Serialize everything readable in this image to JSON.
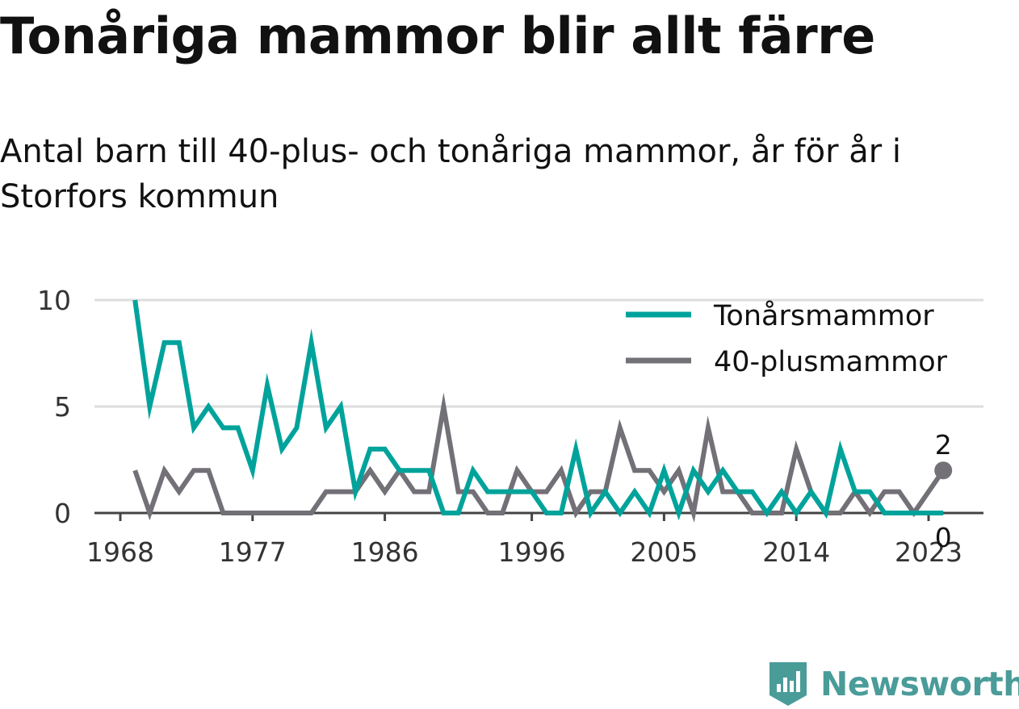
{
  "title": "Tonåriga mammor blir allt färre",
  "subtitle": "Antal barn till 40-plus- och tonåriga mammor, år för år i Storfors kommun",
  "brand": {
    "name": "Newsworthy",
    "color": "#4a9c99",
    "icon": "newsworthy-logo-icon"
  },
  "chart_data": {
    "type": "line",
    "x": [
      1969,
      1970,
      1971,
      1972,
      1973,
      1974,
      1975,
      1976,
      1977,
      1978,
      1979,
      1980,
      1981,
      1982,
      1983,
      1984,
      1985,
      1986,
      1987,
      1988,
      1989,
      1990,
      1991,
      1992,
      1993,
      1994,
      1995,
      1996,
      1997,
      1998,
      1999,
      2000,
      2001,
      2002,
      2003,
      2004,
      2005,
      2006,
      2007,
      2008,
      2009,
      2010,
      2011,
      2012,
      2013,
      2014,
      2015,
      2016,
      2017,
      2018,
      2019,
      2020,
      2021,
      2022,
      2023,
      2024
    ],
    "x_ticks": [
      1968,
      1977,
      1986,
      1996,
      2005,
      2014,
      2023
    ],
    "x_tick_labels": [
      "1968",
      "1977",
      "1986",
      "1996",
      "2005",
      "2014",
      "2023"
    ],
    "ylim": [
      0,
      10
    ],
    "y_ticks": [
      0,
      5,
      10
    ],
    "y_tick_labels": [
      "0",
      "5",
      "10"
    ],
    "series": [
      {
        "name": "Tonårsmammor",
        "color": "#00a39b",
        "values": [
          10,
          5,
          8,
          8,
          4,
          5,
          4,
          4,
          2,
          6,
          3,
          4,
          8,
          4,
          5,
          1,
          3,
          3,
          2,
          2,
          2,
          0,
          0,
          2,
          1,
          1,
          1,
          1,
          0,
          0,
          3,
          0,
          1,
          0,
          1,
          0,
          2,
          0,
          2,
          1,
          2,
          1,
          1,
          0,
          1,
          0,
          1,
          0,
          3,
          1,
          1,
          0,
          0,
          0,
          0,
          0
        ]
      },
      {
        "name": "40-plusmammor",
        "color": "#737077",
        "values": [
          2,
          0,
          2,
          1,
          2,
          2,
          0,
          0,
          0,
          0,
          0,
          0,
          0,
          1,
          1,
          1,
          2,
          1,
          2,
          1,
          1,
          5,
          1,
          1,
          0,
          0,
          2,
          1,
          1,
          2,
          0,
          1,
          1,
          4,
          2,
          2,
          1,
          2,
          0,
          4,
          1,
          1,
          0,
          0,
          0,
          3,
          1,
          0,
          0,
          1,
          0,
          1,
          1,
          0,
          1,
          2
        ]
      }
    ],
    "end_labels": [
      {
        "series": "40-plusmammor",
        "text": "2"
      },
      {
        "series": "Tonårsmammor",
        "text": "0"
      }
    ],
    "legend_position": "top-right",
    "grid": "horizontal",
    "gridline_color": "#dddddd",
    "axis_color": "#444444"
  }
}
